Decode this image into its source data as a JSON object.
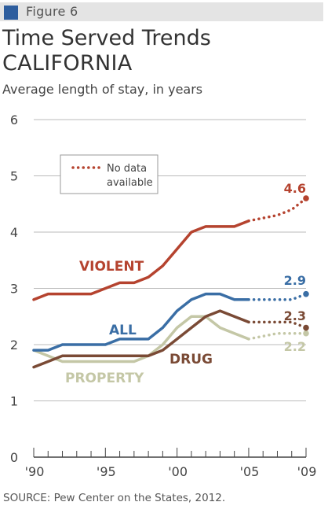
{
  "figure": {
    "label": "Figure 6"
  },
  "header": {
    "title": "Time Served Trends",
    "subtitle": "CALIFORNIA",
    "ylabel": "Average length of stay, in years"
  },
  "source": "SOURCE: Pew Center on the States, 2012.",
  "colors": {
    "violent": "#b5432f",
    "all": "#3a6ea5",
    "drug": "#7a4a35",
    "property": "#c4c7a6",
    "grid": "#bbbbbb",
    "axis": "#444444"
  },
  "chart_data": {
    "type": "line",
    "x": [
      1990,
      1991,
      1992,
      1993,
      1994,
      1995,
      1996,
      1997,
      1998,
      1999,
      2000,
      2001,
      2002,
      2003,
      2004,
      2005,
      2006,
      2007,
      2008,
      2009
    ],
    "xticks": [
      "'90",
      "'95",
      "'00",
      "'05",
      "'09"
    ],
    "xtick_values": [
      1990,
      1995,
      2000,
      2005,
      2009
    ],
    "yticks": [
      "0",
      "1",
      "2",
      "3",
      "4",
      "5",
      "6"
    ],
    "ylim": [
      0,
      6
    ],
    "grid": true,
    "no_data_from": 2005,
    "legend": {
      "label_line1": "No data",
      "label_line2": "available"
    },
    "series": [
      {
        "name": "VIOLENT",
        "color": "#b5432f",
        "values": [
          2.8,
          2.9,
          2.9,
          2.9,
          2.9,
          3.0,
          3.1,
          3.1,
          3.2,
          3.4,
          3.7,
          4.0,
          4.1,
          4.1,
          4.1,
          4.2,
          4.25,
          4.3,
          4.4,
          4.6
        ],
        "end_label": "4.6"
      },
      {
        "name": "ALL",
        "color": "#3a6ea5",
        "values": [
          1.9,
          1.9,
          2.0,
          2.0,
          2.0,
          2.0,
          2.1,
          2.1,
          2.1,
          2.3,
          2.6,
          2.8,
          2.9,
          2.9,
          2.8,
          2.8,
          2.8,
          2.8,
          2.8,
          2.9
        ],
        "end_label": "2.9"
      },
      {
        "name": "DRUG",
        "color": "#7a4a35",
        "values": [
          1.6,
          1.7,
          1.8,
          1.8,
          1.8,
          1.8,
          1.8,
          1.8,
          1.8,
          1.9,
          2.1,
          2.3,
          2.5,
          2.6,
          2.5,
          2.4,
          2.4,
          2.4,
          2.4,
          2.3
        ],
        "end_label": "2.3"
      },
      {
        "name": "PROPERTY",
        "color": "#c4c7a6",
        "values": [
          1.9,
          1.8,
          1.7,
          1.7,
          1.7,
          1.7,
          1.7,
          1.7,
          1.8,
          2.0,
          2.3,
          2.5,
          2.5,
          2.3,
          2.2,
          2.1,
          2.15,
          2.2,
          2.2,
          2.2
        ],
        "end_label": "2.2"
      }
    ]
  }
}
